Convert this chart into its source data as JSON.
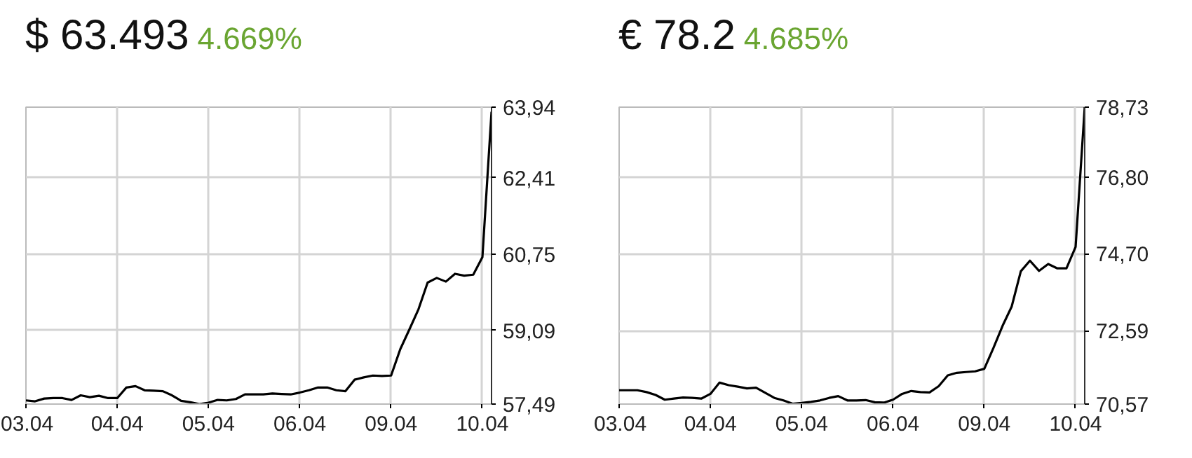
{
  "chart_data": [
    {
      "type": "line",
      "title": "$ 63.493",
      "subtitle": "4.669%",
      "grid": true,
      "ylim": [
        57.49,
        63.94
      ],
      "categories": [
        "03.04",
        null,
        null,
        null,
        null,
        null,
        null,
        null,
        null,
        null,
        "04.04",
        null,
        null,
        null,
        null,
        null,
        null,
        null,
        null,
        null,
        "05.04",
        null,
        null,
        null,
        null,
        null,
        null,
        null,
        null,
        null,
        "06.04",
        null,
        null,
        null,
        null,
        null,
        null,
        null,
        null,
        null,
        "09.04",
        null,
        null,
        null,
        null,
        null,
        null,
        null,
        null,
        null,
        "10.04",
        null
      ],
      "yticks": [
        {
          "value": 57.49,
          "label": "57,49"
        },
        {
          "value": 59.09,
          "label": "59,09"
        },
        {
          "value": 60.75,
          "label": "60,75"
        },
        {
          "value": 62.41,
          "label": "62,41"
        },
        {
          "value": 63.94,
          "label": "63,94"
        }
      ],
      "series": [
        {
          "color": "#000000",
          "values": [
            57.57,
            57.55,
            57.61,
            57.62,
            57.62,
            57.58,
            57.68,
            57.64,
            57.67,
            57.62,
            57.62,
            57.85,
            57.88,
            57.79,
            57.78,
            57.77,
            57.68,
            57.56,
            57.53,
            57.49,
            57.52,
            57.58,
            57.57,
            57.6,
            57.7,
            57.7,
            57.7,
            57.72,
            57.71,
            57.7,
            57.74,
            57.79,
            57.85,
            57.85,
            57.79,
            57.77,
            58.02,
            58.07,
            58.11,
            58.1,
            58.11,
            58.68,
            59.11,
            59.55,
            60.13,
            60.23,
            60.15,
            60.32,
            60.28,
            60.3,
            60.68,
            63.84
          ]
        }
      ]
    },
    {
      "type": "line",
      "title": "€ 78.2",
      "subtitle": "4.685%",
      "grid": true,
      "ylim": [
        70.57,
        78.73
      ],
      "categories": [
        "03.04",
        null,
        null,
        null,
        null,
        null,
        null,
        null,
        null,
        null,
        "04.04",
        null,
        null,
        null,
        null,
        null,
        null,
        null,
        null,
        null,
        "05.04",
        null,
        null,
        null,
        null,
        null,
        null,
        null,
        null,
        null,
        "06.04",
        null,
        null,
        null,
        null,
        null,
        null,
        null,
        null,
        null,
        "09.04",
        null,
        null,
        null,
        null,
        null,
        null,
        null,
        null,
        null,
        "10.04",
        null
      ],
      "yticks": [
        {
          "value": 70.57,
          "label": "70,57"
        },
        {
          "value": 72.59,
          "label": "72,59"
        },
        {
          "value": 74.7,
          "label": "74,70"
        },
        {
          "value": 76.8,
          "label": "76,80"
        },
        {
          "value": 78.73,
          "label": "78,73"
        }
      ],
      "series": [
        {
          "color": "#000000",
          "values": [
            70.95,
            70.95,
            70.95,
            70.9,
            70.82,
            70.69,
            70.72,
            70.75,
            70.74,
            70.72,
            70.85,
            71.16,
            71.09,
            71.05,
            71.0,
            71.02,
            70.88,
            70.74,
            70.67,
            70.58,
            70.6,
            70.63,
            70.67,
            70.74,
            70.79,
            70.67,
            70.67,
            70.68,
            70.62,
            70.61,
            70.69,
            70.85,
            70.93,
            70.9,
            70.89,
            71.06,
            71.36,
            71.43,
            71.45,
            71.47,
            71.54,
            72.11,
            72.72,
            73.25,
            74.22,
            74.51,
            74.23,
            74.42,
            74.3,
            74.3,
            74.89,
            78.73
          ]
        }
      ]
    }
  ]
}
